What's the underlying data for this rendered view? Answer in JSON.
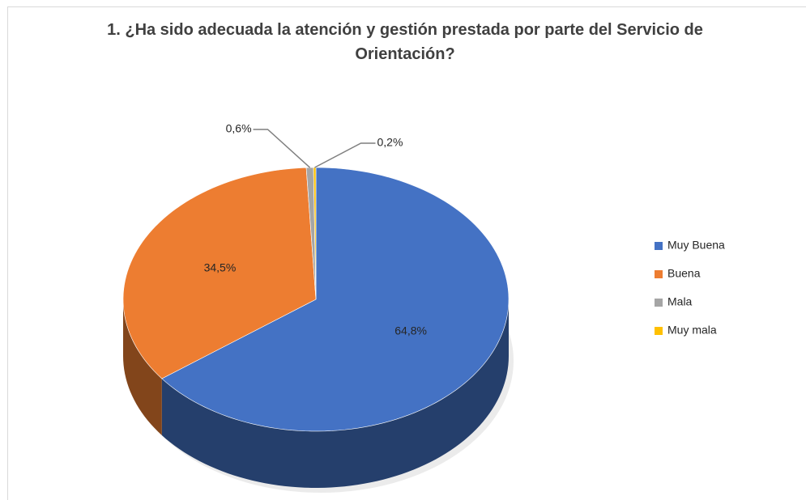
{
  "chart_data": {
    "type": "pie3d",
    "title": "1. ¿Ha sido adecuada la atención y gestión prestada por parte del Servicio de Orientación?",
    "categories": [
      "Muy Buena",
      "Buena",
      "Mala",
      "Muy mala"
    ],
    "values": [
      64.8,
      34.5,
      0.6,
      0.2
    ],
    "value_labels": [
      "64,8%",
      "34,5%",
      "0,6%",
      "0,2%"
    ],
    "colors": [
      "#4472c4",
      "#ed7d31",
      "#a5a5a5",
      "#ffc000"
    ],
    "legend": "right"
  }
}
